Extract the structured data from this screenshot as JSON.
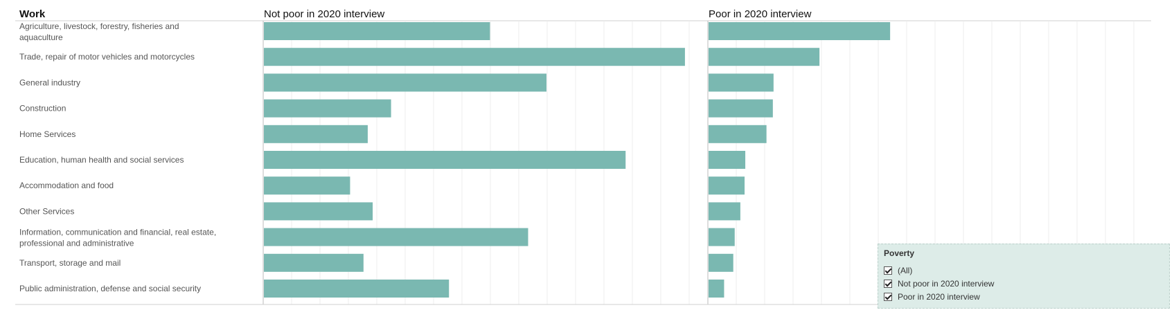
{
  "header": {
    "work_label": "Work"
  },
  "chart_data": {
    "type": "bar",
    "orientation": "horizontal",
    "categories": [
      "Agriculture, livestock, forestry, fisheries and aquaculture",
      "Trade, repair of motor vehicles and motorcycles",
      "General industry",
      "Construction",
      "Home Services",
      "Education, human health and social services",
      "Accommodation and food",
      "Other Services",
      "Information, communication and financial, real estate, professional and administrative",
      "Transport, storage and mail",
      "Public administration, defense and social security"
    ],
    "series": [
      {
        "name": "Not poor in 2020 interview",
        "values": [
          32.0,
          59.6,
          40.0,
          18.0,
          14.7,
          51.2,
          12.2,
          15.4,
          37.4,
          14.1,
          26.2
        ]
      },
      {
        "name": "Poor in 2020 interview",
        "values": [
          25.7,
          15.7,
          9.2,
          9.1,
          8.2,
          5.2,
          5.1,
          4.5,
          3.7,
          3.5,
          2.2
        ]
      }
    ],
    "xlim": [
      0,
      62
    ],
    "grid": true,
    "bar_color": "#7ab8b1"
  },
  "legend": {
    "title": "Poverty",
    "items": [
      {
        "label": "(All)",
        "checked": true
      },
      {
        "label": "Not poor in 2020 interview",
        "checked": true
      },
      {
        "label": "Poor in 2020 interview",
        "checked": true
      }
    ],
    "background": "#ddece8"
  }
}
